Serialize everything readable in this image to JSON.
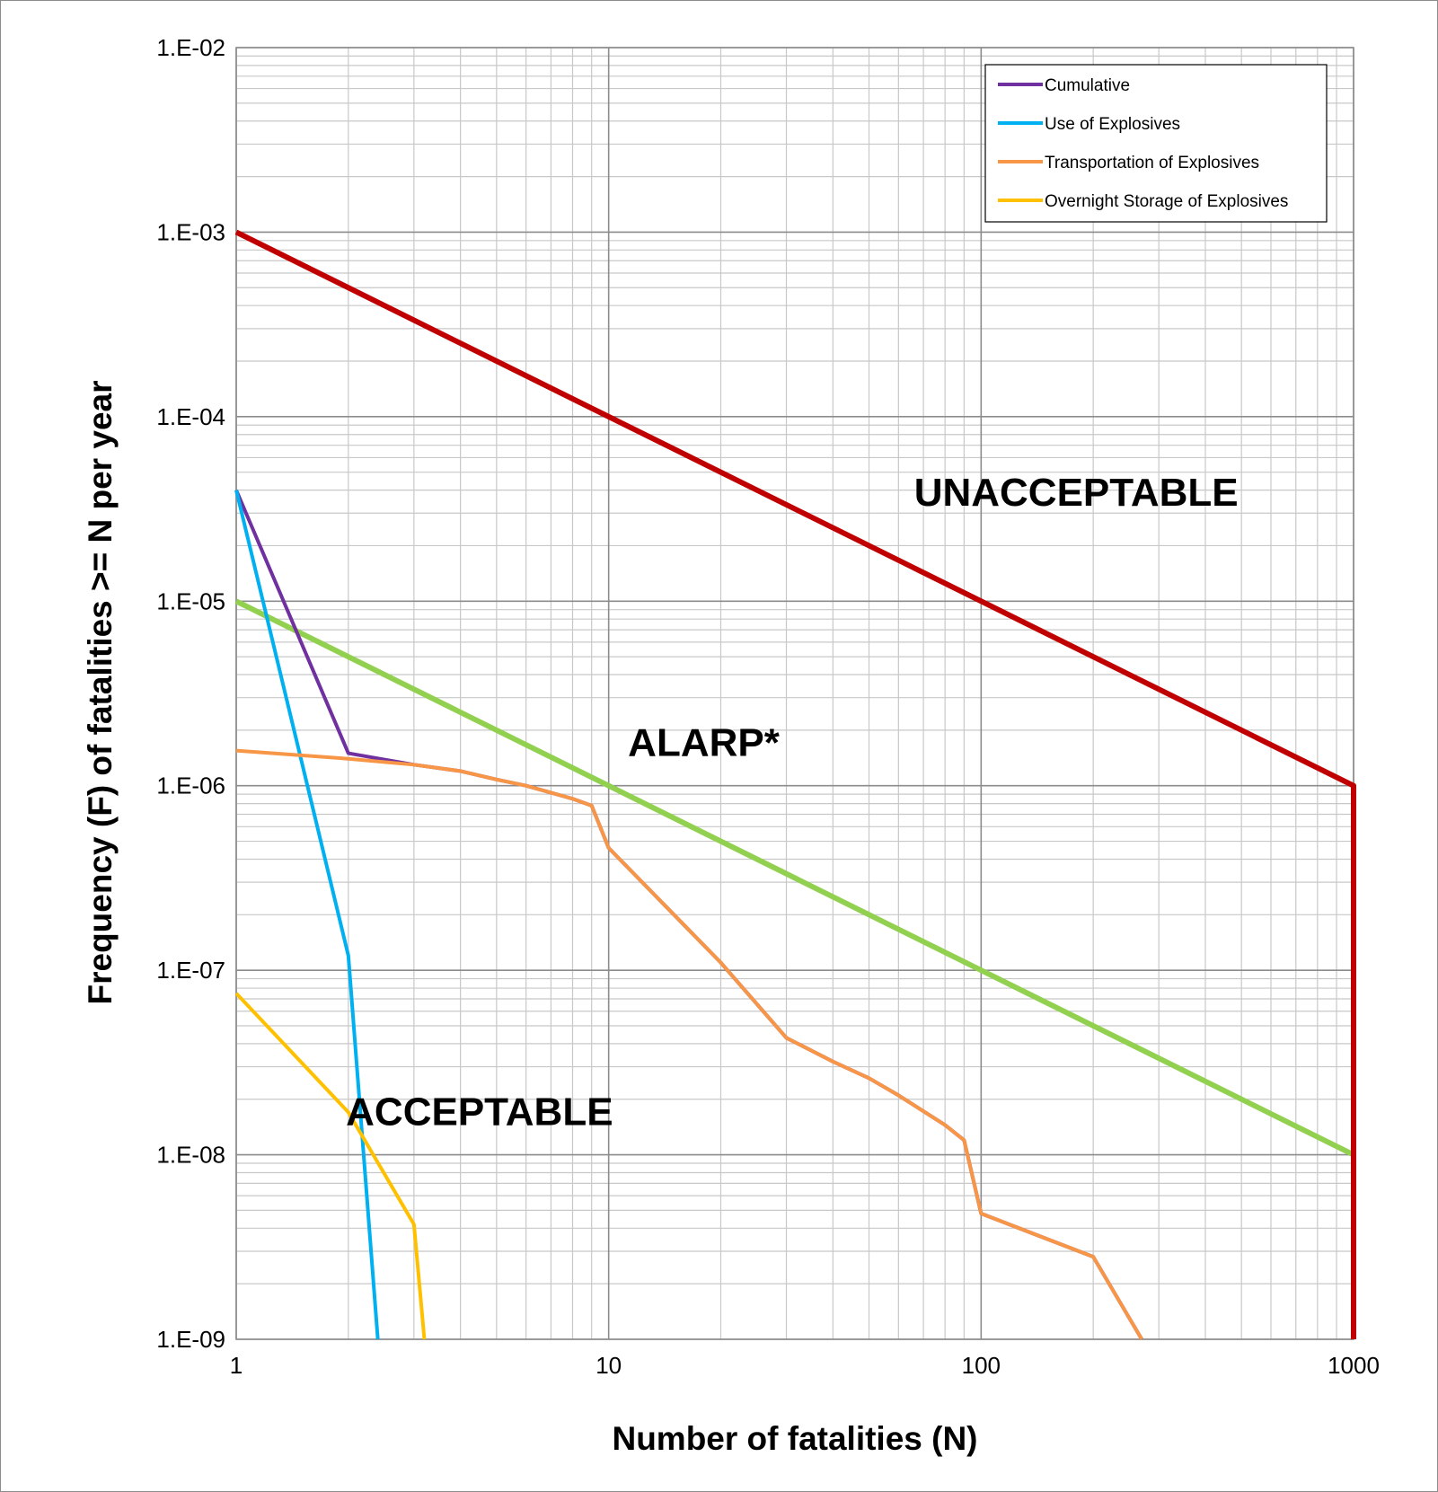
{
  "chart_data": {
    "type": "line",
    "title": "",
    "xlabel": "Number of fatalities (N)",
    "ylabel": "Frequency (F) of fatalities >= N per year",
    "xscale": "log",
    "yscale": "log",
    "xlim": [
      1,
      1000
    ],
    "ylim": [
      1e-09,
      0.01
    ],
    "x_ticks": [
      1,
      10,
      100,
      1000
    ],
    "x_tick_labels": [
      "1",
      "10",
      "100",
      "1000"
    ],
    "y_ticks": [
      0.01,
      0.001,
      0.0001,
      1e-05,
      1e-06,
      1e-07,
      1e-08,
      1e-09
    ],
    "y_tick_labels": [
      "1.E-02",
      "1.E-03",
      "1.E-04",
      "1.E-05",
      "1.E-06",
      "1.E-07",
      "1.E-08",
      "1.E-09"
    ],
    "grid": true,
    "legend_position": "top-right",
    "series": [
      {
        "name": "Cumulative",
        "color": "#7030a0",
        "in_legend": true,
        "points": [
          [
            1,
            4e-05
          ],
          [
            2,
            1.5e-06
          ],
          [
            3,
            1.3e-06
          ],
          [
            4,
            1.2e-06
          ],
          [
            5,
            1.08e-06
          ],
          [
            6,
            1e-06
          ],
          [
            8,
            8.5e-07
          ],
          [
            9,
            7.8e-07
          ],
          [
            10,
            4.6e-07
          ],
          [
            20,
            1.1e-07
          ],
          [
            30,
            4.3e-08
          ],
          [
            40,
            3.2e-08
          ],
          [
            50,
            2.6e-08
          ],
          [
            60,
            2.1e-08
          ],
          [
            80,
            1.45e-08
          ],
          [
            90,
            1.2e-08
          ],
          [
            100,
            4.8e-09
          ],
          [
            200,
            2.8e-09
          ],
          [
            270,
            1e-09
          ]
        ]
      },
      {
        "name": "Use of Explosives",
        "color": "#00b0f0",
        "in_legend": true,
        "points": [
          [
            1,
            4e-05
          ],
          [
            2,
            1.2e-07
          ],
          [
            2.4,
            1e-09
          ]
        ]
      },
      {
        "name": "Transportation of Explosives",
        "color": "#f79646",
        "in_legend": true,
        "points": [
          [
            1,
            1.55e-06
          ],
          [
            2,
            1.4e-06
          ],
          [
            3,
            1.3e-06
          ],
          [
            4,
            1.2e-06
          ],
          [
            5,
            1.08e-06
          ],
          [
            6,
            1e-06
          ],
          [
            8,
            8.5e-07
          ],
          [
            9,
            7.8e-07
          ],
          [
            10,
            4.6e-07
          ],
          [
            20,
            1.1e-07
          ],
          [
            30,
            4.3e-08
          ],
          [
            40,
            3.2e-08
          ],
          [
            50,
            2.6e-08
          ],
          [
            60,
            2.1e-08
          ],
          [
            80,
            1.45e-08
          ],
          [
            90,
            1.2e-08
          ],
          [
            100,
            4.8e-09
          ],
          [
            200,
            2.8e-09
          ],
          [
            270,
            1e-09
          ]
        ]
      },
      {
        "name": "Overnight Storage of Explosives",
        "color": "#ffc000",
        "in_legend": true,
        "points": [
          [
            1,
            7.5e-08
          ],
          [
            2,
            1.7e-08
          ],
          [
            3,
            4.2e-09
          ],
          [
            3.2,
            1e-09
          ]
        ]
      },
      {
        "name": "",
        "color": "#c00000",
        "in_legend": false,
        "points": [
          [
            1,
            0.001
          ],
          [
            1000,
            1e-06
          ],
          [
            1000,
            1e-09
          ]
        ]
      },
      {
        "name": "",
        "color": "#92d050",
        "in_legend": false,
        "points": [
          [
            1,
            1e-05
          ],
          [
            1000,
            1e-08
          ]
        ]
      }
    ],
    "annotations": [
      {
        "text": "UNACCEPTABLE",
        "x": 180,
        "y": 3.3e-05
      },
      {
        "text": "ALARP*",
        "x": 18,
        "y": 1.45e-06
      },
      {
        "text": "ACCEPTABLE",
        "x": 4.5,
        "y": 1.45e-08
      }
    ]
  }
}
